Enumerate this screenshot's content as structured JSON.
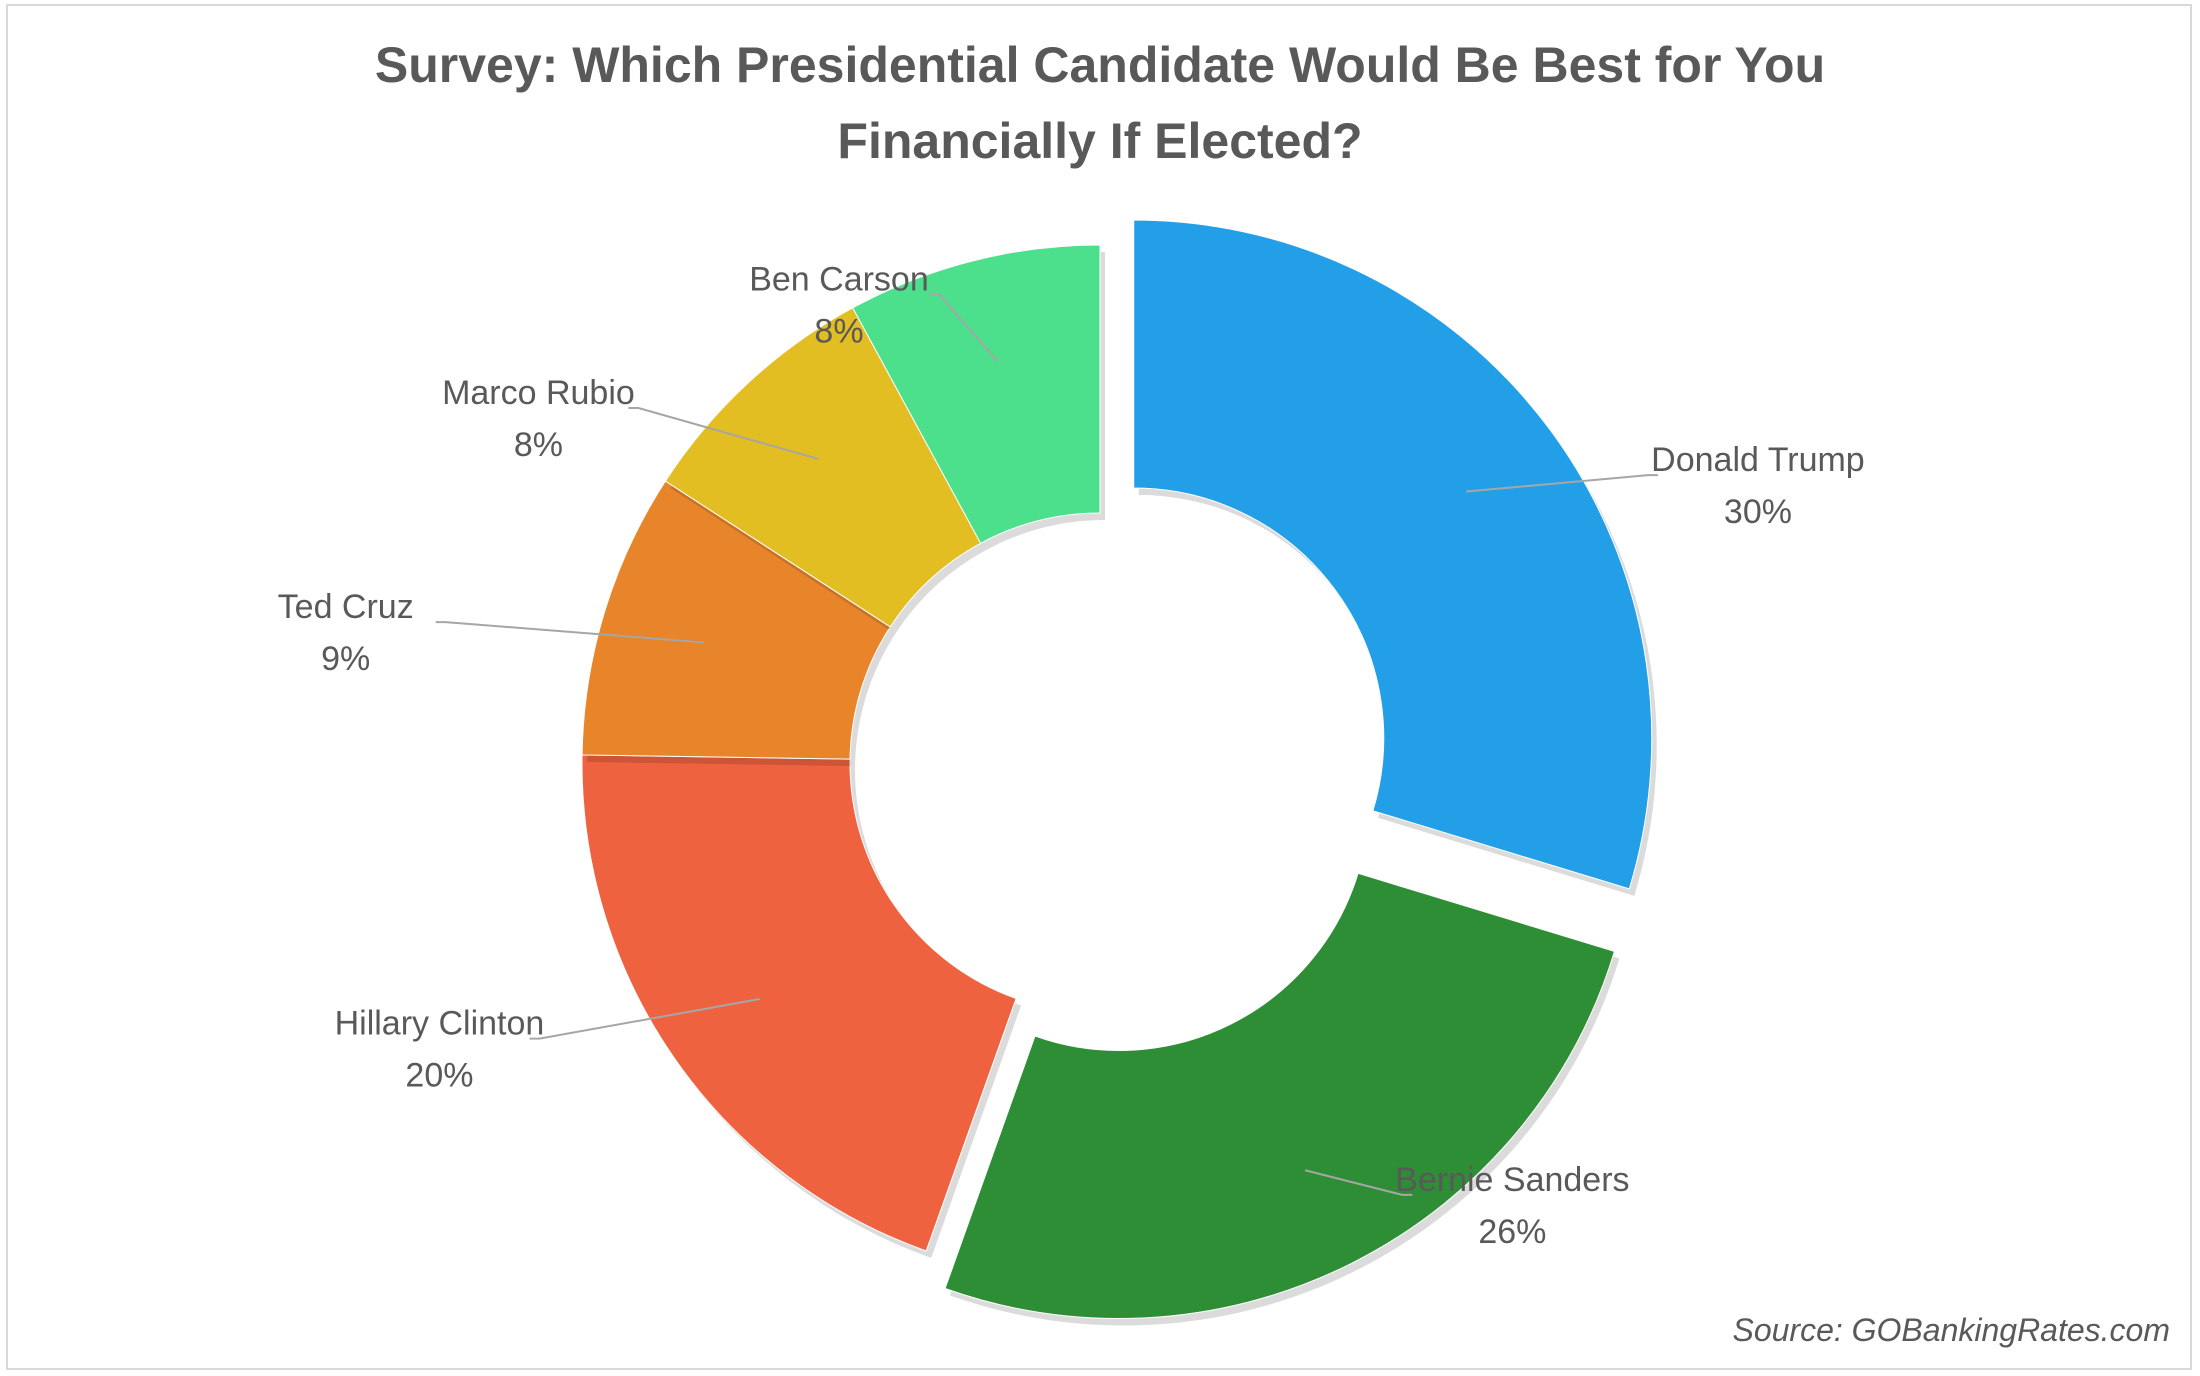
{
  "chart_data": {
    "type": "pie",
    "style": "doughnut",
    "title_lines": [
      "Survey: Which Presidential Candidate Would Be Best for You",
      "Financially If Elected?"
    ],
    "categories": [
      "Donald Trump",
      "Bernie Sanders",
      "Hillary Clinton",
      "Ted Cruz",
      "Marco Rubio",
      "Ben Carson"
    ],
    "values": [
      30,
      26,
      20,
      9,
      8,
      8
    ],
    "value_labels": [
      "30%",
      "26%",
      "20%",
      "9%",
      "8%",
      "8%"
    ],
    "colors": [
      "#229FE6",
      "#2E8E36",
      "#EF6240",
      "#E8852B",
      "#E3BE22",
      "#4DE08C"
    ],
    "exploded": [
      "Donald Trump",
      "Bernie Sanders"
    ],
    "legend": "none",
    "source": "Source: GOBankingRates.com"
  }
}
